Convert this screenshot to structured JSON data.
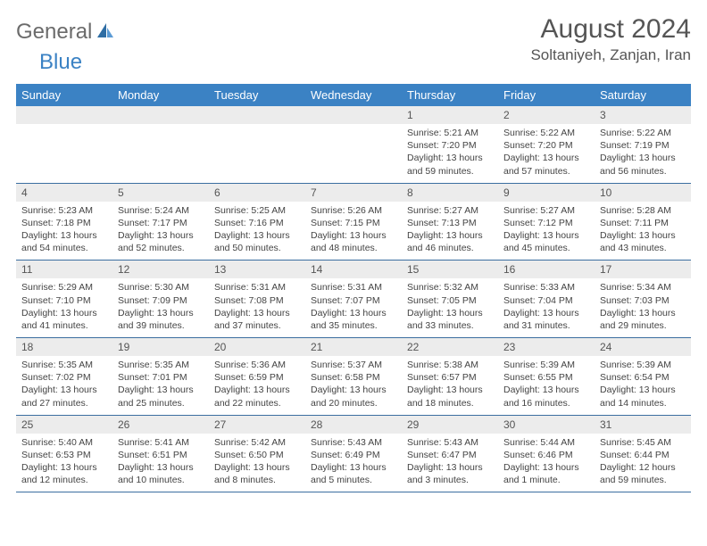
{
  "brand": {
    "part1": "General",
    "part2": "Blue"
  },
  "title": "August 2024",
  "location": "Soltaniyeh, Zanjan, Iran",
  "colors": {
    "header_bg": "#3b82c4",
    "header_text": "#ffffff",
    "daynum_bg": "#ececec",
    "row_border": "#3b6ea0",
    "title_color": "#555555",
    "body_text": "#444444",
    "logo_gray": "#6b6b6b",
    "logo_blue": "#3b82c4"
  },
  "typography": {
    "title_fontsize": 30,
    "location_fontsize": 17,
    "dayheader_fontsize": 13,
    "daynum_fontsize": 12,
    "cell_fontsize": 10.5
  },
  "dayHeaders": [
    "Sunday",
    "Monday",
    "Tuesday",
    "Wednesday",
    "Thursday",
    "Friday",
    "Saturday"
  ],
  "startOffset": 4,
  "days": [
    {
      "n": 1,
      "sr": "5:21 AM",
      "ss": "7:20 PM",
      "dl": "13 hours and 59 minutes."
    },
    {
      "n": 2,
      "sr": "5:22 AM",
      "ss": "7:20 PM",
      "dl": "13 hours and 57 minutes."
    },
    {
      "n": 3,
      "sr": "5:22 AM",
      "ss": "7:19 PM",
      "dl": "13 hours and 56 minutes."
    },
    {
      "n": 4,
      "sr": "5:23 AM",
      "ss": "7:18 PM",
      "dl": "13 hours and 54 minutes."
    },
    {
      "n": 5,
      "sr": "5:24 AM",
      "ss": "7:17 PM",
      "dl": "13 hours and 52 minutes."
    },
    {
      "n": 6,
      "sr": "5:25 AM",
      "ss": "7:16 PM",
      "dl": "13 hours and 50 minutes."
    },
    {
      "n": 7,
      "sr": "5:26 AM",
      "ss": "7:15 PM",
      "dl": "13 hours and 48 minutes."
    },
    {
      "n": 8,
      "sr": "5:27 AM",
      "ss": "7:13 PM",
      "dl": "13 hours and 46 minutes."
    },
    {
      "n": 9,
      "sr": "5:27 AM",
      "ss": "7:12 PM",
      "dl": "13 hours and 45 minutes."
    },
    {
      "n": 10,
      "sr": "5:28 AM",
      "ss": "7:11 PM",
      "dl": "13 hours and 43 minutes."
    },
    {
      "n": 11,
      "sr": "5:29 AM",
      "ss": "7:10 PM",
      "dl": "13 hours and 41 minutes."
    },
    {
      "n": 12,
      "sr": "5:30 AM",
      "ss": "7:09 PM",
      "dl": "13 hours and 39 minutes."
    },
    {
      "n": 13,
      "sr": "5:31 AM",
      "ss": "7:08 PM",
      "dl": "13 hours and 37 minutes."
    },
    {
      "n": 14,
      "sr": "5:31 AM",
      "ss": "7:07 PM",
      "dl": "13 hours and 35 minutes."
    },
    {
      "n": 15,
      "sr": "5:32 AM",
      "ss": "7:05 PM",
      "dl": "13 hours and 33 minutes."
    },
    {
      "n": 16,
      "sr": "5:33 AM",
      "ss": "7:04 PM",
      "dl": "13 hours and 31 minutes."
    },
    {
      "n": 17,
      "sr": "5:34 AM",
      "ss": "7:03 PM",
      "dl": "13 hours and 29 minutes."
    },
    {
      "n": 18,
      "sr": "5:35 AM",
      "ss": "7:02 PM",
      "dl": "13 hours and 27 minutes."
    },
    {
      "n": 19,
      "sr": "5:35 AM",
      "ss": "7:01 PM",
      "dl": "13 hours and 25 minutes."
    },
    {
      "n": 20,
      "sr": "5:36 AM",
      "ss": "6:59 PM",
      "dl": "13 hours and 22 minutes."
    },
    {
      "n": 21,
      "sr": "5:37 AM",
      "ss": "6:58 PM",
      "dl": "13 hours and 20 minutes."
    },
    {
      "n": 22,
      "sr": "5:38 AM",
      "ss": "6:57 PM",
      "dl": "13 hours and 18 minutes."
    },
    {
      "n": 23,
      "sr": "5:39 AM",
      "ss": "6:55 PM",
      "dl": "13 hours and 16 minutes."
    },
    {
      "n": 24,
      "sr": "5:39 AM",
      "ss": "6:54 PM",
      "dl": "13 hours and 14 minutes."
    },
    {
      "n": 25,
      "sr": "5:40 AM",
      "ss": "6:53 PM",
      "dl": "13 hours and 12 minutes."
    },
    {
      "n": 26,
      "sr": "5:41 AM",
      "ss": "6:51 PM",
      "dl": "13 hours and 10 minutes."
    },
    {
      "n": 27,
      "sr": "5:42 AM",
      "ss": "6:50 PM",
      "dl": "13 hours and 8 minutes."
    },
    {
      "n": 28,
      "sr": "5:43 AM",
      "ss": "6:49 PM",
      "dl": "13 hours and 5 minutes."
    },
    {
      "n": 29,
      "sr": "5:43 AM",
      "ss": "6:47 PM",
      "dl": "13 hours and 3 minutes."
    },
    {
      "n": 30,
      "sr": "5:44 AM",
      "ss": "6:46 PM",
      "dl": "13 hours and 1 minute."
    },
    {
      "n": 31,
      "sr": "5:45 AM",
      "ss": "6:44 PM",
      "dl": "12 hours and 59 minutes."
    }
  ],
  "labels": {
    "sunrise": "Sunrise: ",
    "sunset": "Sunset: ",
    "daylight": "Daylight: "
  }
}
